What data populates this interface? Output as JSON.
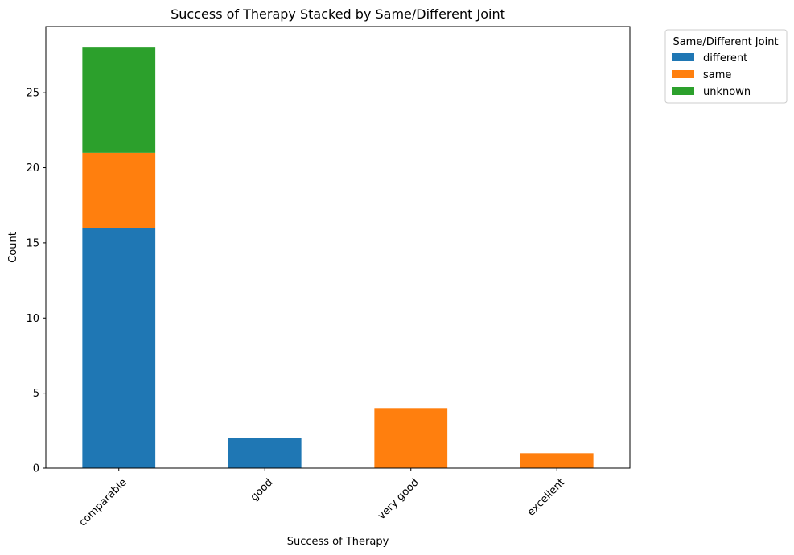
{
  "chart_data": {
    "type": "bar",
    "stacked": true,
    "title": "Success of Therapy Stacked by Same/Different Joint",
    "xlabel": "Success of Therapy",
    "ylabel": "Count",
    "categories": [
      "comparable",
      "good",
      "very good",
      "excellent"
    ],
    "series": [
      {
        "name": "different",
        "values": [
          16,
          2,
          0,
          0
        ],
        "color": "#1f77b4"
      },
      {
        "name": "same",
        "values": [
          5,
          0,
          4,
          1
        ],
        "color": "#ff7f0e"
      },
      {
        "name": "unknown",
        "values": [
          7,
          0,
          0,
          0
        ],
        "color": "#2ca02c"
      }
    ],
    "ylim": [
      0,
      29.4
    ],
    "yticks": [
      0,
      5,
      10,
      15,
      20,
      25
    ],
    "xtick_rotation": 45,
    "legend": {
      "title": "Same/Different Joint",
      "placement": "outside-top-right"
    },
    "grid": false
  }
}
